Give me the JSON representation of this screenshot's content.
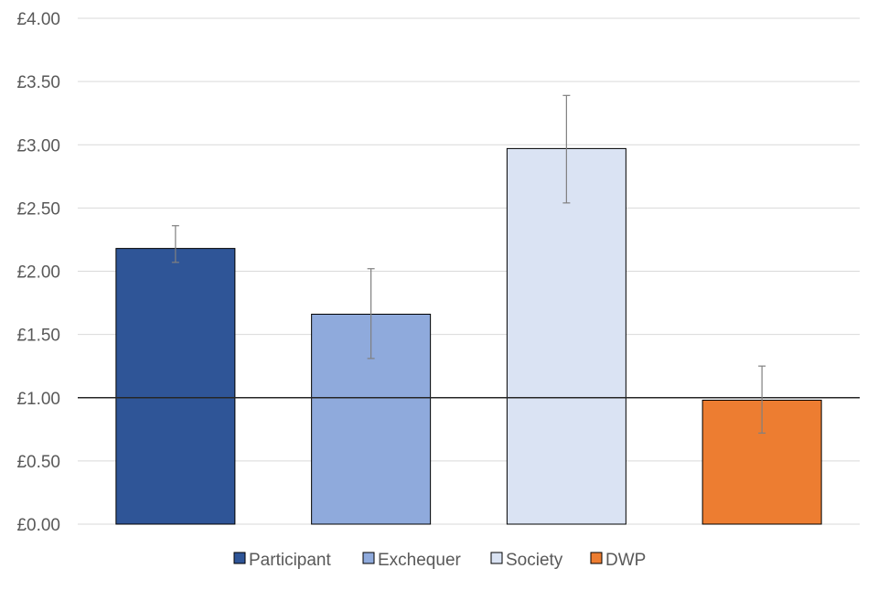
{
  "chart_data": {
    "type": "bar",
    "title": "",
    "xlabel": "",
    "ylabel": "",
    "ylim": [
      0,
      4
    ],
    "y_ticks": [
      "£0.00",
      "£0.50",
      "£1.00",
      "£1.50",
      "£2.00",
      "£2.50",
      "£3.00",
      "£3.50",
      "£4.00"
    ],
    "y_tick_values": [
      0,
      0.5,
      1,
      1.5,
      2,
      2.5,
      3,
      3.5,
      4
    ],
    "grid": true,
    "reference_line": 1.0,
    "legend_position": "bottom",
    "series": [
      {
        "name": "Participant",
        "value": 2.18,
        "error_low": 2.07,
        "error_high": 2.36,
        "color": "#2F5597"
      },
      {
        "name": "Exchequer",
        "value": 1.66,
        "error_low": 1.31,
        "error_high": 2.02,
        "color": "#8FAADC"
      },
      {
        "name": "Society",
        "value": 2.97,
        "error_low": 2.54,
        "error_high": 3.39,
        "color": "#DAE3F3"
      },
      {
        "name": "DWP",
        "value": 0.98,
        "error_low": 0.72,
        "error_high": 1.25,
        "color": "#ED7D31"
      }
    ]
  }
}
